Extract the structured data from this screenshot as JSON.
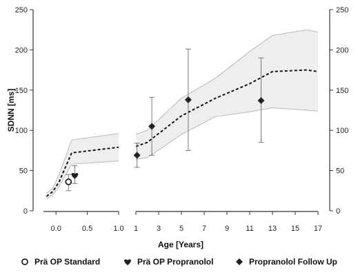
{
  "chart_data": {
    "type": "line",
    "ylabel": "SDNN [ms]",
    "xlabel": "Age [Years]",
    "ylim": [
      0,
      250
    ],
    "yticks": [
      "0",
      "50",
      "100",
      "150",
      "200",
      "250"
    ],
    "y_tick_values": [
      0,
      50,
      100,
      150,
      200,
      250
    ],
    "y_axis_right": true,
    "grid": false,
    "x_axis_broken": true,
    "x_segment_1": {
      "xlim": [
        -0.2,
        1.0
      ],
      "xticks": [
        "0.0",
        "0.5",
        "1.0"
      ],
      "x_tick_values": [
        0.0,
        0.5,
        1.0
      ]
    },
    "x_segment_2": {
      "xlim": [
        1,
        17
      ],
      "xticks": [
        "1",
        "3",
        "5",
        "7",
        "9",
        "11",
        "13",
        "15",
        "17"
      ],
      "x_tick_values": [
        1,
        3,
        5,
        7,
        9,
        11,
        13,
        15,
        17
      ]
    },
    "reference_band": {
      "segment_1": {
        "x": [
          -0.15,
          -0.05,
          0.05,
          0.25,
          1.0
        ],
        "lower": [
          15,
          20,
          30,
          58,
          62
        ],
        "median": [
          18,
          24,
          36,
          72,
          79
        ],
        "upper": [
          22,
          28,
          45,
          88,
          96
        ]
      },
      "segment_2": {
        "x": [
          1,
          2,
          5,
          8,
          11,
          13,
          16,
          17
        ],
        "lower": [
          64,
          66,
          95,
          117,
          123,
          128,
          125,
          124
        ],
        "median": [
          80,
          85,
          118,
          140,
          158,
          173,
          175,
          173
        ],
        "upper": [
          95,
          100,
          140,
          165,
          198,
          218,
          225,
          222
        ]
      }
    },
    "series": [
      {
        "name": "Prä OP Standard",
        "marker": "open-circle",
        "points": [
          {
            "segment": 1,
            "x": 0.2,
            "y": 36,
            "lower": 25,
            "upper": 45
          }
        ]
      },
      {
        "name": "Prä OP Propranolol",
        "marker": "heart",
        "points": [
          {
            "segment": 1,
            "x": 0.3,
            "y": 44,
            "lower": 34,
            "upper": 56
          }
        ]
      },
      {
        "name": "Propranolol Follow Up",
        "marker": "diamond",
        "points": [
          {
            "segment": 2,
            "x": 1.1,
            "y": 69,
            "lower": 54,
            "upper": 84
          },
          {
            "segment": 2,
            "x": 2.4,
            "y": 105,
            "lower": 69,
            "upper": 141
          },
          {
            "segment": 2,
            "x": 5.6,
            "y": 138,
            "lower": 75,
            "upper": 201
          },
          {
            "segment": 2,
            "x": 12.0,
            "y": 137,
            "lower": 85,
            "upper": 190
          }
        ]
      }
    ],
    "legend_placement": "bottom",
    "colors": {
      "band_fill": "#eeeeee",
      "band_edge": "#b8b8b8",
      "median": "#111111",
      "axis": "#333333",
      "error_bar": "#777777",
      "marker": "#222222"
    }
  }
}
